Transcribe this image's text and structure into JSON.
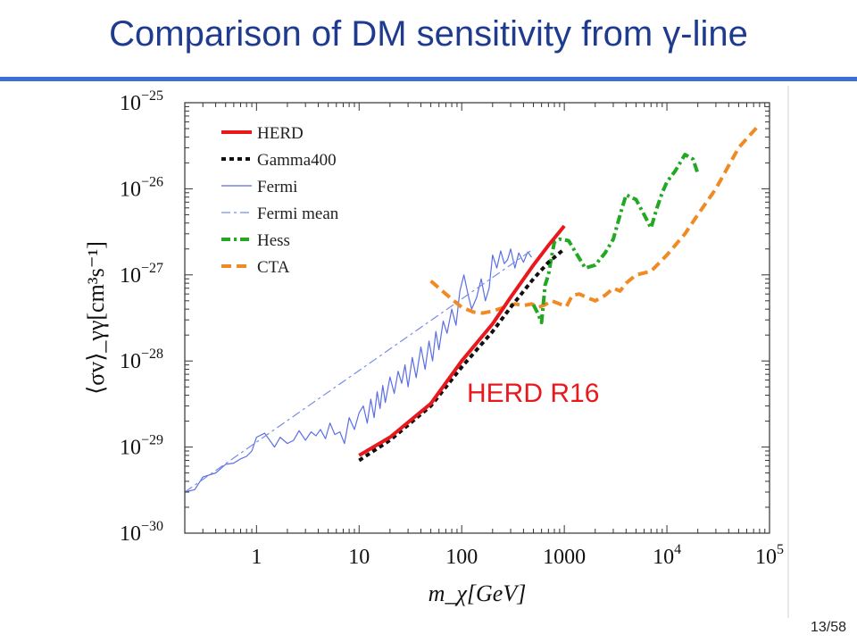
{
  "slide": {
    "title": "Comparison of DM sensitivity from γ-line",
    "annotation": "HERD R16",
    "page_number": "13/58"
  },
  "chart_data": {
    "type": "line",
    "xscale": "log",
    "yscale": "log",
    "xlim": [
      0.2,
      100000
    ],
    "ylim": [
      1e-30,
      1e-25
    ],
    "xlabel": "m_χ[GeV]",
    "ylabel": "⟨σv⟩_γγ[cm³s⁻¹]",
    "x_tick_labels": [
      {
        "value": 1,
        "label": "1"
      },
      {
        "value": 10,
        "label": "10"
      },
      {
        "value": 100,
        "label": "100"
      },
      {
        "value": 1000,
        "label": "1000"
      },
      {
        "value": 10000,
        "label": "10⁴"
      },
      {
        "value": 100000,
        "label": "10⁵"
      }
    ],
    "y_tick_labels": [
      {
        "value": 1e-25,
        "base": "10",
        "exp": "−25"
      },
      {
        "value": 1e-26,
        "base": "10",
        "exp": "−26"
      },
      {
        "value": 1e-27,
        "base": "10",
        "exp": "−27"
      },
      {
        "value": 1e-28,
        "base": "10",
        "exp": "−28"
      },
      {
        "value": 1e-29,
        "base": "10",
        "exp": "−29"
      },
      {
        "value": 1e-30,
        "base": "10",
        "exp": "−30"
      }
    ],
    "grid": false,
    "legend_position": "top-left",
    "series": [
      {
        "name": "HERD",
        "color": "#e8181c",
        "style": "solid",
        "width": 4,
        "x": [
          10,
          20,
          50,
          100,
          200,
          300,
          500,
          700,
          1000
        ],
        "y": [
          8e-30,
          1.3e-29,
          3.2e-29,
          1e-28,
          2.7e-28,
          5.5e-28,
          1.3e-27,
          2.2e-27,
          3.7e-27
        ]
      },
      {
        "name": "Gamma400",
        "color": "#111111",
        "style": "dotted",
        "width": 4,
        "x": [
          10,
          20,
          50,
          100,
          200,
          300,
          500,
          700,
          1000
        ],
        "y": [
          7e-30,
          1.2e-29,
          3e-29,
          8.5e-29,
          2.2e-28,
          4.2e-28,
          9e-28,
          1.4e-27,
          2e-27
        ]
      },
      {
        "name": "Fermi",
        "color": "#5a6fe6",
        "style": "solid",
        "width": 1.2,
        "x": [
          0.2,
          0.25,
          0.3,
          0.4,
          0.5,
          0.6,
          0.7,
          0.8,
          0.9,
          1.0,
          1.2,
          1.5,
          1.7,
          2.0,
          2.3,
          2.6,
          3.0,
          3.4,
          3.8,
          4.2,
          4.7,
          5.2,
          5.8,
          6.5,
          7.2,
          8.0,
          9.0,
          10,
          11,
          12,
          13,
          14,
          15,
          16,
          17,
          18,
          20,
          22,
          24,
          26,
          28,
          30,
          33,
          36,
          40,
          44,
          48,
          52,
          56,
          60,
          66,
          72,
          80,
          88,
          96,
          105,
          115,
          125,
          140,
          155,
          170,
          185,
          200,
          220,
          240,
          260,
          280,
          300,
          330,
          360,
          400,
          440,
          480
        ],
        "y": [
          3e-30,
          3.2e-30,
          4.5e-30,
          5e-30,
          6.3e-30,
          6.5e-30,
          7.3e-30,
          7.8e-30,
          9e-30,
          1.3e-29,
          1.45e-29,
          1e-29,
          1.3e-29,
          1.1e-29,
          1.2e-29,
          1.55e-29,
          1.2e-29,
          1.5e-29,
          1.35e-29,
          1.6e-29,
          1.25e-29,
          1.9e-29,
          1.4e-29,
          1.5e-29,
          1.1e-29,
          2.2e-29,
          1.6e-29,
          2.5e-29,
          3e-29,
          1.9e-29,
          3.6e-29,
          2.2e-29,
          4.4e-29,
          2.8e-29,
          5.2e-29,
          3.3e-29,
          6.5e-29,
          4.2e-29,
          7.6e-29,
          5.5e-29,
          9e-29,
          5e-29,
          1.1e-28,
          6.4e-29,
          1.45e-28,
          8e-29,
          1.7e-28,
          1e-28,
          2.2e-28,
          1.35e-28,
          2.9e-28,
          2.1e-28,
          4e-28,
          2.6e-28,
          6.5e-28,
          1e-27,
          6e-28,
          4e-28,
          5.5e-28,
          9e-28,
          5e-28,
          7e-28,
          1.7e-27,
          1.2e-27,
          1.9e-27,
          1.35e-27,
          1.5e-27,
          2e-27,
          1.2e-27,
          1.8e-27,
          1.4e-27,
          1.85e-27,
          1.6e-27
        ]
      },
      {
        "name": "Fermi mean",
        "color": "#7a8be8",
        "style": "dashdot",
        "width": 1.2,
        "x": [
          0.2,
          500
        ],
        "y": [
          3e-30,
          2e-27
        ]
      },
      {
        "name": "Hess",
        "color": "#22a822",
        "style": "dashdot",
        "width": 4,
        "x": [
          500,
          550,
          600,
          650,
          700,
          750,
          800,
          900,
          1000,
          1100,
          1300,
          1600,
          2000,
          2500,
          3000,
          3500,
          4000,
          5000,
          6000,
          7000,
          8000,
          9000,
          10000,
          12000,
          15000,
          18000,
          20000
        ],
        "y": [
          4.5e-28,
          3.6e-28,
          2.8e-28,
          7.6e-28,
          1e-27,
          1.6e-27,
          2.4e-27,
          2.6e-27,
          2.55e-27,
          2.5e-27,
          1.8e-27,
          1.2e-27,
          1.3e-27,
          1.8e-27,
          2.6e-27,
          5e-27,
          8.5e-27,
          7.5e-27,
          5e-27,
          3.5e-27,
          6e-27,
          9e-27,
          1.2e-26,
          1.6e-26,
          2.5e-26,
          2.2e-26,
          1.5e-26
        ]
      },
      {
        "name": "CTA",
        "color": "#f08a25",
        "style": "dashed",
        "width": 4,
        "x": [
          50,
          70,
          100,
          130,
          160,
          200,
          260,
          330,
          400,
          480,
          560,
          650,
          750,
          900,
          1050,
          1200,
          1400,
          1700,
          2000,
          2500,
          3000,
          3500,
          4000,
          5000,
          7000,
          10000,
          15000,
          20000,
          30000,
          50000,
          80000
        ],
        "y": [
          8.5e-28,
          6e-28,
          4.2e-28,
          3.7e-28,
          3.6e-28,
          3.8e-28,
          4.2e-28,
          4.6e-28,
          4.4e-28,
          4.6e-28,
          4.2e-28,
          4.5e-28,
          5e-28,
          4.6e-28,
          4.3e-28,
          5.8e-28,
          6e-28,
          5.4e-28,
          5e-28,
          5.8e-28,
          7e-28,
          6.5e-28,
          8e-28,
          1e-27,
          1.1e-27,
          1.7e-27,
          3e-27,
          5e-27,
          1e-26,
          3e-26,
          5.6e-26
        ]
      }
    ]
  }
}
